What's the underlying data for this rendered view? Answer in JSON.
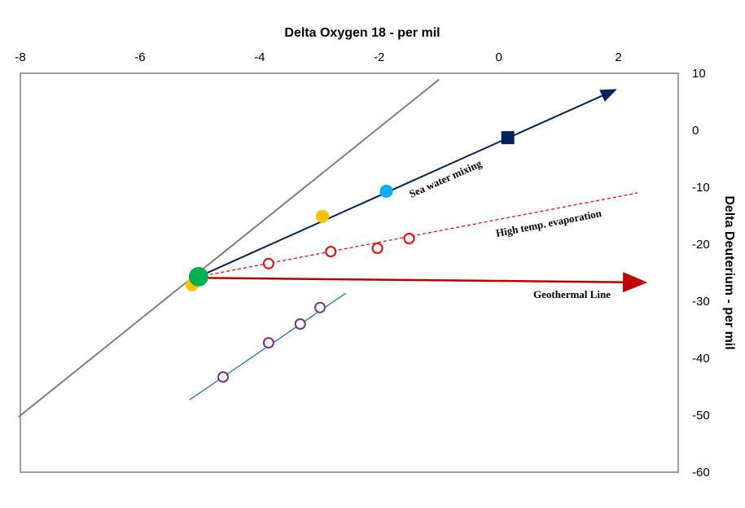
{
  "chart_data": {
    "type": "scatter",
    "xlabel": "Delta Oxygen 18 - per mil",
    "ylabel": "Delta Deuterium - per mil",
    "xlim": [
      -8,
      3
    ],
    "ylim": [
      -60,
      10
    ],
    "xticks": [
      -8,
      -6,
      -4,
      -2,
      0,
      2
    ],
    "yticks": [
      10,
      0,
      -10,
      -20,
      -30,
      -40,
      -50,
      -60
    ],
    "grid": false,
    "lines": [
      {
        "name": "meteoric-water-line",
        "color": "#7f7f7f",
        "dash": false,
        "arrow": false,
        "points": [
          [
            -8.03,
            -50.3
          ],
          [
            -1.0,
            8.9
          ]
        ]
      },
      {
        "name": "sea-water-mixing-line",
        "label": "Sea water mixing",
        "color": "#002060",
        "dash": false,
        "arrow": true,
        "points": [
          [
            -5.02,
            -25.7
          ],
          [
            1.95,
            7.1
          ]
        ]
      },
      {
        "name": "evaporation-line",
        "label": "High temp. evaporation",
        "color": "#ff0000",
        "dash": true,
        "arrow": false,
        "points": [
          [
            -5.02,
            -25.7
          ],
          [
            2.32,
            -11.0
          ]
        ]
      },
      {
        "name": "geothermal-line",
        "label": "Geothermal Line",
        "color": "#c00000",
        "dash": false,
        "arrow": true,
        "points": [
          [
            -5.02,
            -25.9
          ],
          [
            2.45,
            -26.7
          ]
        ]
      },
      {
        "name": "trend-line",
        "color": "#0070c0",
        "dash": false,
        "arrow": false,
        "points": [
          [
            -5.17,
            -47.3
          ],
          [
            -2.56,
            -28.6
          ]
        ]
      }
    ],
    "series": [
      {
        "name": "source",
        "marker": "circle-filled",
        "color": "#00b050",
        "size": 12,
        "points": [
          [
            -5.02,
            -25.7
          ]
        ]
      },
      {
        "name": "orange-samples",
        "marker": "circle-filled",
        "color": "#ffc000",
        "size": 8,
        "points": [
          [
            -5.13,
            -27.1
          ],
          [
            -2.95,
            -15.1
          ]
        ]
      },
      {
        "name": "blue-sample",
        "marker": "circle-filled",
        "color": "#00b0f0",
        "size": 8,
        "points": [
          [
            -1.88,
            -10.7
          ]
        ]
      },
      {
        "name": "sea-water",
        "marker": "square",
        "color": "#002060",
        "size": 8,
        "points": [
          [
            0.15,
            -1.3
          ]
        ]
      },
      {
        "name": "evaporated-samples",
        "marker": "circle-open",
        "color": "#ff0000",
        "size": 6,
        "points": [
          [
            -3.85,
            -23.4
          ],
          [
            -2.81,
            -21.3
          ],
          [
            -2.03,
            -20.7
          ],
          [
            -1.5,
            -19.0
          ]
        ]
      },
      {
        "name": "purple-samples",
        "marker": "circle-open",
        "color": "#7030a0",
        "size": 6,
        "points": [
          [
            -4.61,
            -43.3
          ],
          [
            -3.85,
            -37.3
          ],
          [
            -3.32,
            -34.0
          ],
          [
            -2.99,
            -31.1
          ]
        ]
      }
    ]
  }
}
